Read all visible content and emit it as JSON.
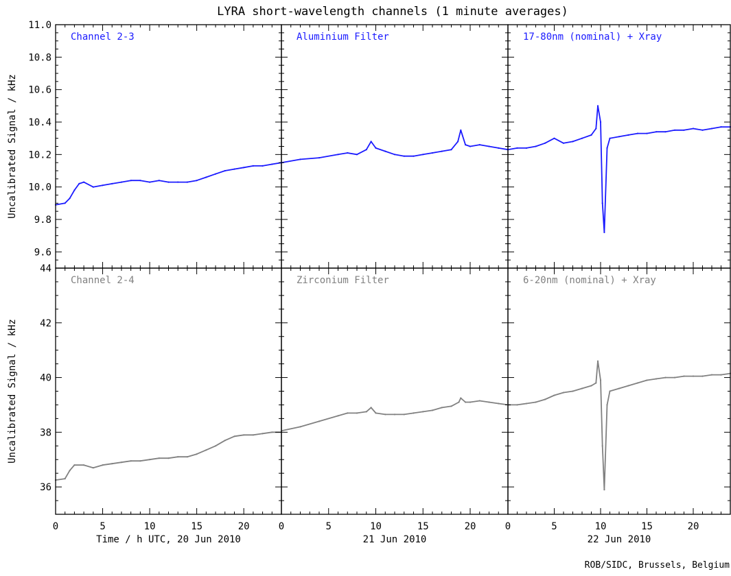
{
  "figure": {
    "title": "LYRA short-wavelength channels (1 minute averages)",
    "credit": "ROB/SIDC, Brussels, Belgium"
  },
  "chart_data": [
    {
      "type": "line",
      "title": "Channel 2-3",
      "ylabel": "Uncalibrated Signal / kHz",
      "color": "#1a1aff",
      "ylim": [
        9.5,
        11.0
      ],
      "yticks": [
        "9.6",
        "9.8",
        "10.0",
        "10.2",
        "10.4",
        "10.6",
        "10.8",
        "11.0"
      ],
      "xlim": [
        0,
        24
      ],
      "series": [
        {
          "x": [
            0,
            1,
            1.5,
            2,
            2.5,
            3,
            4,
            5,
            6,
            7,
            8,
            9,
            10,
            11,
            12,
            13,
            14,
            15,
            16,
            17,
            18,
            19,
            20,
            21,
            22,
            23,
            24
          ],
          "values": [
            9.89,
            9.9,
            9.93,
            9.98,
            10.02,
            10.03,
            10.0,
            10.01,
            10.02,
            10.03,
            10.04,
            10.04,
            10.03,
            10.04,
            10.03,
            10.03,
            10.03,
            10.04,
            10.06,
            10.08,
            10.1,
            10.11,
            10.12,
            10.13,
            10.13,
            10.14,
            10.15
          ]
        }
      ]
    },
    {
      "type": "line",
      "title": "Aluminium Filter",
      "color": "#1a1aff",
      "ylim": [
        9.5,
        11.0
      ],
      "xlim": [
        0,
        24
      ],
      "series": [
        {
          "x": [
            0,
            2,
            4,
            6,
            7,
            8,
            9,
            9.5,
            10,
            11,
            12,
            13,
            14,
            15,
            16,
            17,
            18,
            18.7,
            19,
            19.5,
            20,
            21,
            22,
            23,
            24
          ],
          "values": [
            10.15,
            10.17,
            10.18,
            10.2,
            10.21,
            10.2,
            10.23,
            10.28,
            10.24,
            10.22,
            10.2,
            10.19,
            10.19,
            10.2,
            10.21,
            10.22,
            10.23,
            10.28,
            10.35,
            10.26,
            10.25,
            10.26,
            10.25,
            10.24,
            10.23
          ]
        }
      ]
    },
    {
      "type": "line",
      "title": "17-80nm (nominal) + Xray",
      "color": "#1a1aff",
      "ylim": [
        9.5,
        11.0
      ],
      "xlim": [
        0,
        24
      ],
      "series": [
        {
          "x": [
            0,
            1,
            2,
            3,
            4,
            5,
            6,
            7,
            8,
            9,
            9.5,
            9.7,
            10,
            10.2,
            10.4,
            10.7,
            11,
            12,
            13,
            14,
            15,
            16,
            17,
            18,
            19,
            20,
            21,
            22,
            23,
            24
          ],
          "values": [
            10.23,
            10.24,
            10.24,
            10.25,
            10.27,
            10.3,
            10.27,
            10.28,
            10.3,
            10.32,
            10.36,
            10.5,
            10.4,
            9.9,
            9.72,
            10.24,
            10.3,
            10.31,
            10.32,
            10.33,
            10.33,
            10.34,
            10.34,
            10.35,
            10.35,
            10.36,
            10.35,
            10.36,
            10.37,
            10.37
          ]
        }
      ]
    },
    {
      "type": "line",
      "title": "Channel 2-4",
      "ylabel": "Uncalibrated Signal / kHz",
      "xlabel": "Time / h UTC, 20 Jun 2010",
      "color": "#808080",
      "ylim": [
        35,
        44
      ],
      "yticks": [
        "36",
        "38",
        "40",
        "42",
        "44"
      ],
      "xlim": [
        0,
        24
      ],
      "xticks": [
        "0",
        "5",
        "10",
        "15",
        "20"
      ],
      "series": [
        {
          "x": [
            0,
            1,
            1.5,
            2,
            3,
            4,
            5,
            6,
            7,
            8,
            9,
            10,
            11,
            12,
            13,
            14,
            15,
            16,
            17,
            18,
            19,
            20,
            21,
            22,
            23,
            24
          ],
          "values": [
            36.25,
            36.3,
            36.6,
            36.8,
            36.8,
            36.7,
            36.8,
            36.85,
            36.9,
            36.95,
            36.95,
            37.0,
            37.05,
            37.05,
            37.1,
            37.1,
            37.2,
            37.35,
            37.5,
            37.7,
            37.85,
            37.9,
            37.9,
            37.95,
            38.0,
            38.0
          ]
        }
      ]
    },
    {
      "type": "line",
      "title": "Zirconium Filter",
      "xlabel": "21 Jun 2010",
      "color": "#808080",
      "ylim": [
        35,
        44
      ],
      "xlim": [
        0,
        24
      ],
      "xticks": [
        "0",
        "5",
        "10",
        "15",
        "20"
      ],
      "series": [
        {
          "x": [
            0,
            2,
            4,
            6,
            7,
            8,
            9,
            9.5,
            10,
            11,
            12,
            13,
            14,
            15,
            16,
            17,
            18,
            18.8,
            19,
            19.5,
            20,
            21,
            22,
            23,
            24
          ],
          "values": [
            38.05,
            38.2,
            38.4,
            38.6,
            38.7,
            38.7,
            38.75,
            38.9,
            38.7,
            38.65,
            38.65,
            38.65,
            38.7,
            38.75,
            38.8,
            38.9,
            38.95,
            39.1,
            39.25,
            39.1,
            39.1,
            39.15,
            39.1,
            39.05,
            39.0
          ]
        }
      ]
    },
    {
      "type": "line",
      "title": "6-20nm (nominal) + Xray",
      "xlabel": "22 Jun 2010",
      "color": "#808080",
      "ylim": [
        35,
        44
      ],
      "xlim": [
        0,
        24
      ],
      "xticks": [
        "0",
        "5",
        "10",
        "15",
        "20"
      ],
      "series": [
        {
          "x": [
            0,
            1,
            2,
            3,
            4,
            5,
            6,
            7,
            8,
            9,
            9.5,
            9.7,
            10,
            10.2,
            10.4,
            10.7,
            11,
            12,
            13,
            14,
            15,
            16,
            17,
            18,
            19,
            20,
            21,
            22,
            23,
            24
          ],
          "values": [
            39.0,
            39.0,
            39.05,
            39.1,
            39.2,
            39.35,
            39.45,
            39.5,
            39.6,
            39.7,
            39.8,
            40.6,
            39.9,
            37.5,
            35.9,
            39.0,
            39.5,
            39.6,
            39.7,
            39.8,
            39.9,
            39.95,
            40.0,
            40.0,
            40.05,
            40.05,
            40.05,
            40.1,
            40.1,
            40.15
          ]
        }
      ]
    }
  ]
}
